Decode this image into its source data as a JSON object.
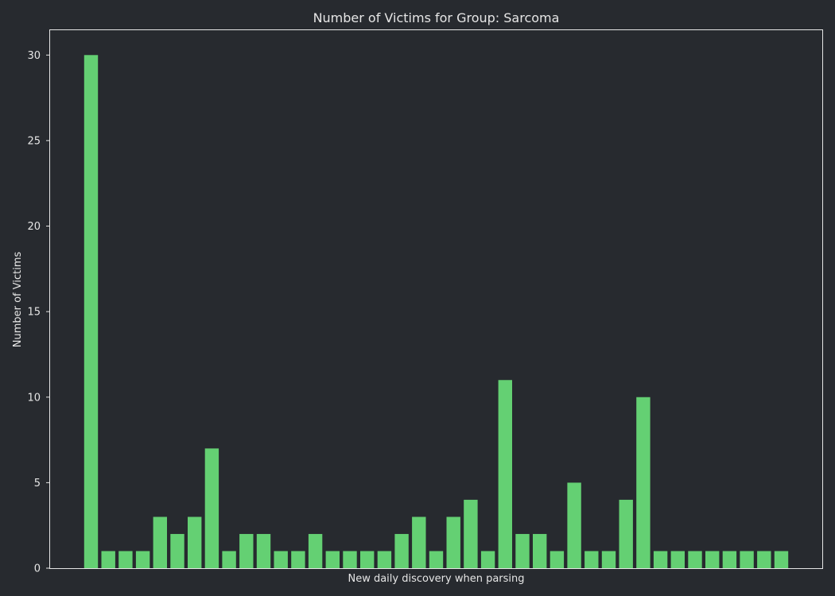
{
  "chart_data": {
    "type": "bar",
    "title": "Number of Victims for Group: Sarcoma",
    "xlabel": "New daily discovery when parsing",
    "ylabel": "Number of Victims",
    "values": [
      30,
      1,
      1,
      1,
      3,
      2,
      3,
      7,
      1,
      2,
      2,
      1,
      1,
      2,
      1,
      1,
      1,
      1,
      2,
      3,
      1,
      3,
      4,
      1,
      11,
      2,
      2,
      1,
      5,
      1,
      1,
      4,
      10,
      1,
      1,
      1,
      1,
      1,
      1,
      1,
      1
    ],
    "ylim": [
      0,
      31.5
    ],
    "yticks": [
      0,
      5,
      10,
      15,
      20,
      25,
      30
    ],
    "grid": false,
    "colors": {
      "background": "#272a2f",
      "bar": "#64d073",
      "frame": "#e6e6e6",
      "text": "#e6e6e6"
    }
  }
}
